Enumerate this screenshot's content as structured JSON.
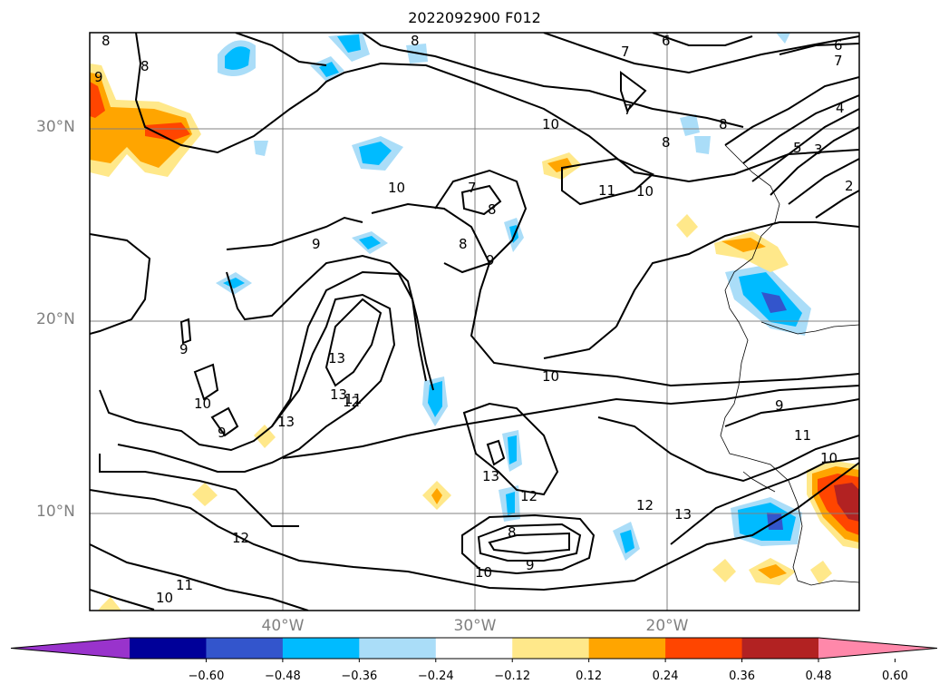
{
  "title": "2022092900 F012",
  "lat_labels": [
    "30°N",
    "20°N",
    "10°N"
  ],
  "lon_labels": [
    "40°W",
    "30°W",
    "20°W"
  ],
  "contour_labels": [
    "8",
    "8",
    "8",
    "9",
    "7",
    "6",
    "6",
    "7",
    "7",
    "10",
    "8",
    "8",
    "5",
    "3",
    "2",
    "4",
    "10",
    "11",
    "10",
    "7",
    "8",
    "9",
    "9",
    "8",
    "13",
    "13",
    "12",
    "10",
    "9",
    "10",
    "9",
    "13",
    "11",
    "13",
    "12",
    "8",
    "9",
    "10",
    "12",
    "13",
    "12",
    "11",
    "10",
    "9",
    "11",
    "10"
  ],
  "colorbar": {
    "ticks": [
      "−0.60",
      "−0.48",
      "−0.36",
      "−0.24",
      "−0.12",
      "0.12",
      "0.24",
      "0.36",
      "0.48",
      "0.60"
    ],
    "colors": [
      "#9933cc",
      "#000099",
      "#3355cc",
      "#00bbff",
      "#aaddf8",
      "#ffffff",
      "#ffe88a",
      "#ffa500",
      "#ff4500",
      "#b22222",
      "#ff88aa"
    ]
  }
}
